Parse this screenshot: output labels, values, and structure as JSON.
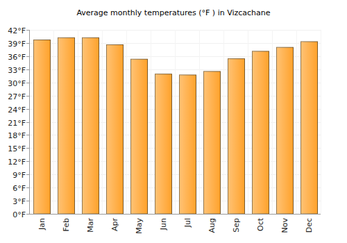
{
  "chart_data": {
    "type": "bar",
    "title": "Average monthly temperatures (°F ) in Vizcachane",
    "categories": [
      "Jan",
      "Feb",
      "Mar",
      "Apr",
      "May",
      "Jun",
      "Jul",
      "Aug",
      "Sep",
      "Oct",
      "Nov",
      "Dec"
    ],
    "values": [
      39.7,
      40.2,
      40.2,
      38.6,
      35.3,
      31.9,
      31.7,
      32.5,
      35.4,
      37.1,
      38.0,
      39.3
    ],
    "color": "#ffa22b",
    "ylim": [
      0,
      42
    ],
    "yticks": [
      {
        "value": 0,
        "label": "0°F"
      },
      {
        "value": 3,
        "label": "3°F"
      },
      {
        "value": 6,
        "label": "6°F"
      },
      {
        "value": 9,
        "label": "9°F"
      },
      {
        "value": 12,
        "label": "12°F"
      },
      {
        "value": 15,
        "label": "15°F"
      },
      {
        "value": 18,
        "label": "18°F"
      },
      {
        "value": 21,
        "label": "21°F"
      },
      {
        "value": 24,
        "label": "24°F"
      },
      {
        "value": 27,
        "label": "27°F"
      },
      {
        "value": 30,
        "label": "30°F"
      },
      {
        "value": 33,
        "label": "33°F"
      },
      {
        "value": 36,
        "label": "36°F"
      },
      {
        "value": 39,
        "label": "39°F"
      },
      {
        "value": 42,
        "label": "42°F"
      }
    ],
    "grid": true
  }
}
